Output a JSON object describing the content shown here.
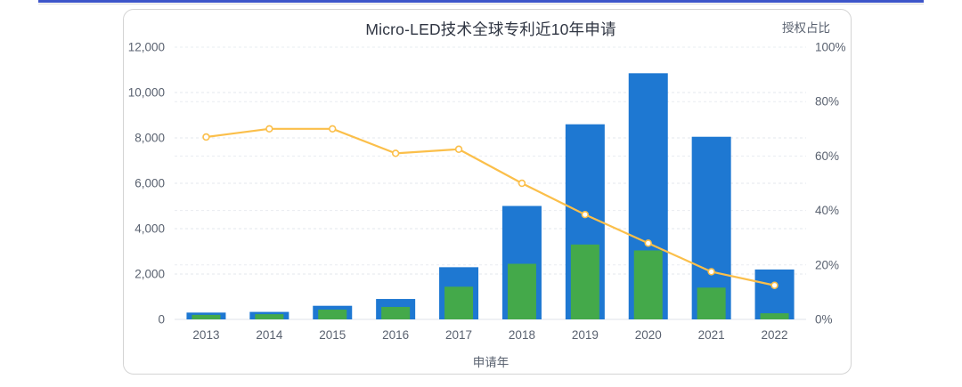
{
  "page": {
    "background_color": "#ffffff",
    "accent_color": "#3d55c9"
  },
  "chart_data": {
    "type": "bar",
    "title": "Micro-LED技术全球专利近10年申请",
    "xlabel": "申请年",
    "right_axis_label": "授权占比",
    "categories": [
      "2013",
      "2014",
      "2015",
      "2016",
      "2017",
      "2018",
      "2019",
      "2020",
      "2021",
      "2022"
    ],
    "series": [
      {
        "id": "bar-outer",
        "type": "bar",
        "color": "#1e78d2",
        "axis": "left",
        "values": [
          300,
          330,
          600,
          900,
          2300,
          5000,
          8600,
          10850,
          8050,
          2200
        ]
      },
      {
        "id": "bar-inner",
        "type": "bar",
        "color": "#44a94a",
        "axis": "left",
        "values": [
          200,
          230,
          430,
          550,
          1440,
          2450,
          3300,
          3040,
          1400,
          270
        ]
      },
      {
        "id": "ratio-line",
        "type": "line",
        "color": "#fbbf4a",
        "axis": "right",
        "values": [
          67,
          70,
          70,
          61,
          62.5,
          50,
          38.5,
          28,
          17.5,
          12.5
        ]
      }
    ],
    "left_axis": {
      "min": 0,
      "max": 12000,
      "tick_labels": [
        "0",
        "2,000",
        "4,000",
        "6,000",
        "8,000",
        "10,000",
        "12,000"
      ]
    },
    "right_axis": {
      "min": 0,
      "max": 100,
      "tick_labels": [
        "0%",
        "20%",
        "40%",
        "60%",
        "80%",
        "100%"
      ]
    },
    "grid": "dashed",
    "legend_position": "none"
  }
}
